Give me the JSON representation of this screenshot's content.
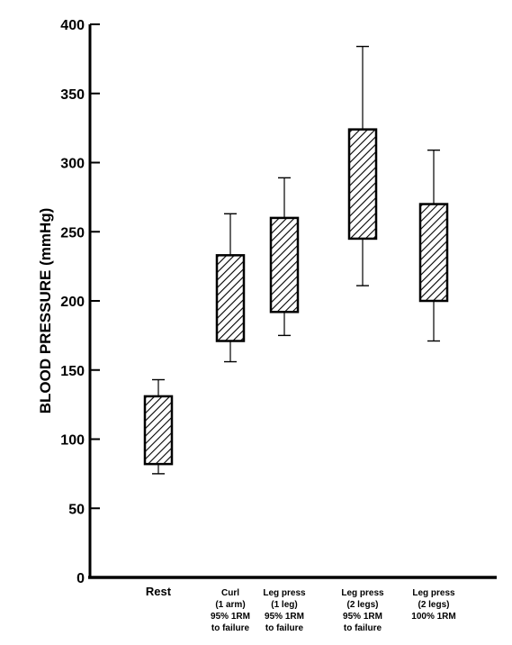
{
  "chart_data": {
    "type": "box",
    "ylabel": "BLOOD PRESSURE  (mmHg)",
    "xlabel": "",
    "ylim": [
      0,
      400
    ],
    "yticks": [
      0,
      50,
      100,
      150,
      200,
      250,
      300,
      350,
      400
    ],
    "grid": false,
    "categories": [
      [
        "Rest"
      ],
      [
        "Curl",
        "(1 arm)",
        "95% 1RM",
        "to failure"
      ],
      [
        "Leg press",
        "(1 leg)",
        "95% 1RM",
        "to failure"
      ],
      [
        "Leg press",
        "(2 legs)",
        "95% 1RM",
        "to failure"
      ],
      [
        "Leg press",
        "(2 legs)",
        "100% 1RM"
      ]
    ],
    "boxes": [
      {
        "low": 75,
        "q1": 82,
        "q3": 131,
        "high": 143
      },
      {
        "low": 156,
        "q1": 171,
        "q3": 233,
        "high": 263
      },
      {
        "low": 175,
        "q1": 192,
        "q3": 260,
        "high": 289
      },
      {
        "low": 211,
        "q1": 245,
        "q3": 324,
        "high": 384
      },
      {
        "low": 171,
        "q1": 200,
        "q3": 270,
        "high": 309
      }
    ],
    "fill": "diagonal-hatch",
    "colors": {
      "ink": "#000000",
      "background": "#ffffff"
    }
  }
}
